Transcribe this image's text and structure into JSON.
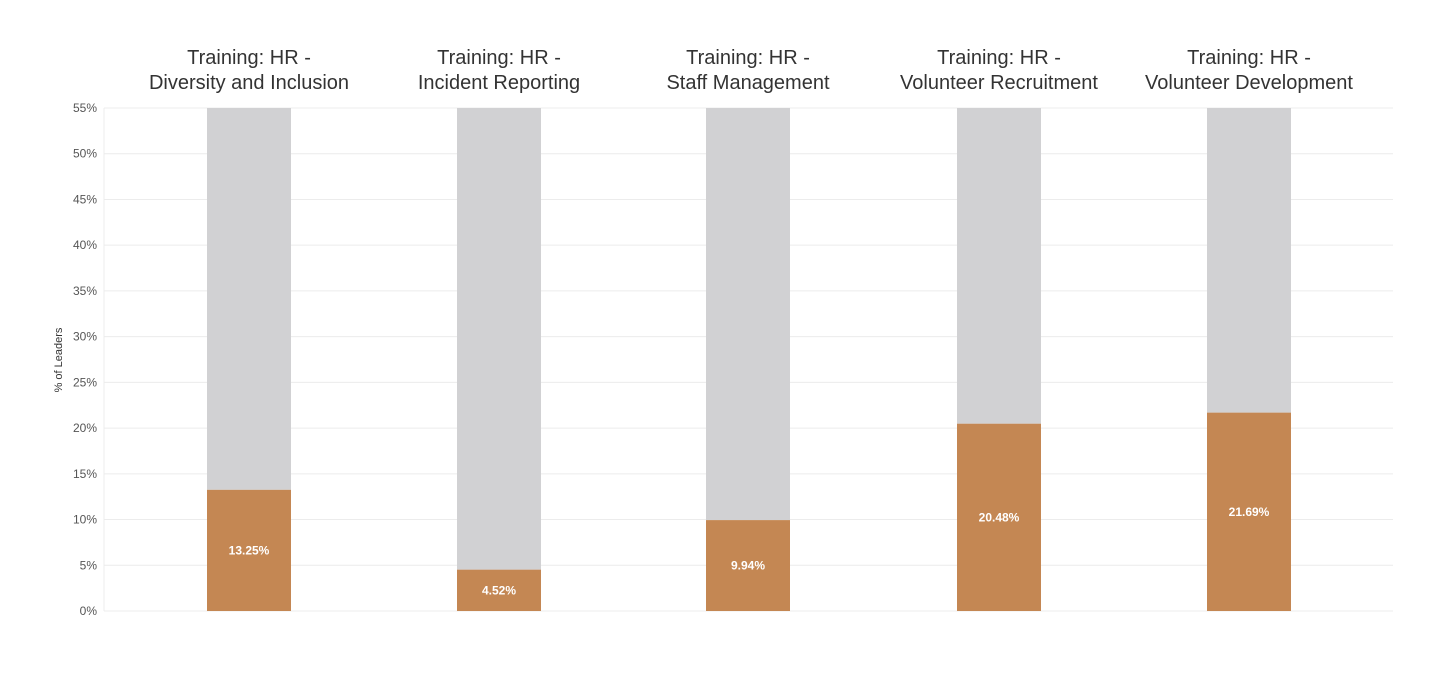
{
  "chart_data": {
    "type": "bar",
    "subtype": "stacked-100-panels",
    "ylabel": "% of Leaders",
    "ylim": [
      0,
      55
    ],
    "yticks": [
      "0%",
      "5%",
      "10%",
      "15%",
      "20%",
      "25%",
      "30%",
      "35%",
      "40%",
      "45%",
      "50%",
      "55%"
    ],
    "ytick_values": [
      0,
      5,
      10,
      15,
      20,
      25,
      30,
      35,
      40,
      45,
      50,
      55
    ],
    "grid": true,
    "categories": [
      [
        "Training: HR -",
        "Diversity and Inclusion"
      ],
      [
        "Training: HR -",
        "Incident Reporting"
      ],
      [
        "Training: HR -",
        "Staff Management"
      ],
      [
        "Training: HR -",
        "Volunteer Recruitment"
      ],
      [
        "Training: HR -",
        "Volunteer Development"
      ]
    ],
    "values": [
      13.25,
      4.52,
      9.94,
      20.48,
      21.69
    ],
    "data_labels": [
      "13.25%",
      "4.52%",
      "9.94%",
      "20.48%",
      "21.69%"
    ],
    "colors": {
      "value": "#C48753",
      "remainder": "#D1D1D3",
      "grid": "#ECECEC",
      "label": "#FFFFFF"
    }
  }
}
